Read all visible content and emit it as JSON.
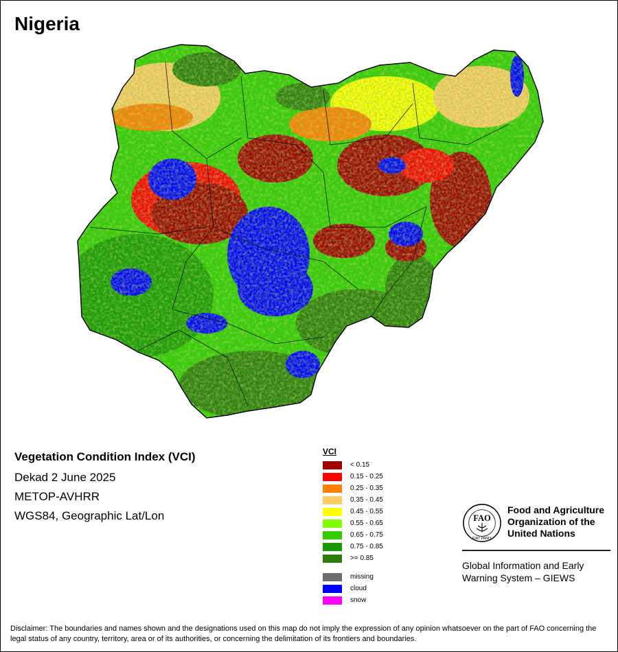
{
  "map": {
    "country": "Nigeria",
    "info_lines": {
      "title": "Vegetation Condition Index (VCI)",
      "period": "Dekad 2 June 2025",
      "sensor": "METOP-AVHRR",
      "projection": "WGS84, Geographic Lat/Lon"
    }
  },
  "legend": {
    "title": "VCI",
    "classes": [
      {
        "label": "< 0.15",
        "color": "#a00000"
      },
      {
        "label": "0.15 - 0.25",
        "color": "#ff0000"
      },
      {
        "label": "0.25 - 0.35",
        "color": "#ff8000"
      },
      {
        "label": "0.35 - 0.45",
        "color": "#ffcc66"
      },
      {
        "label": "0.45 - 0.55",
        "color": "#ffff00"
      },
      {
        "label": "0.55 - 0.65",
        "color": "#80ff00"
      },
      {
        "label": "0.65 - 0.75",
        "color": "#33cc00"
      },
      {
        "label": "0.75 - 0.85",
        "color": "#1a9900"
      },
      {
        "label": ">= 0.85",
        "color": "#2e7d0a"
      }
    ],
    "special": [
      {
        "label": "missing",
        "color": "#6e6e6e"
      },
      {
        "label": "cloud",
        "color": "#0000ff"
      },
      {
        "label": "snow",
        "color": "#ff00ff"
      }
    ]
  },
  "organization": {
    "name": "Food and Agriculture\nOrganization of the\nUnited Nations",
    "logo_text": "FAO",
    "logo_motto": "FIAT PANIS",
    "program": "Global Information and Early\nWarning System – GIEWS"
  },
  "disclaimer": "Disclaimer: The boundaries and names shown and the designations used on this map do not imply the expression of any opinion whatsoever on the part of FAO concerning the legal status of any country, territory, area or of its authorities, or concerning the delimitation of its frontiers and boundaries."
}
